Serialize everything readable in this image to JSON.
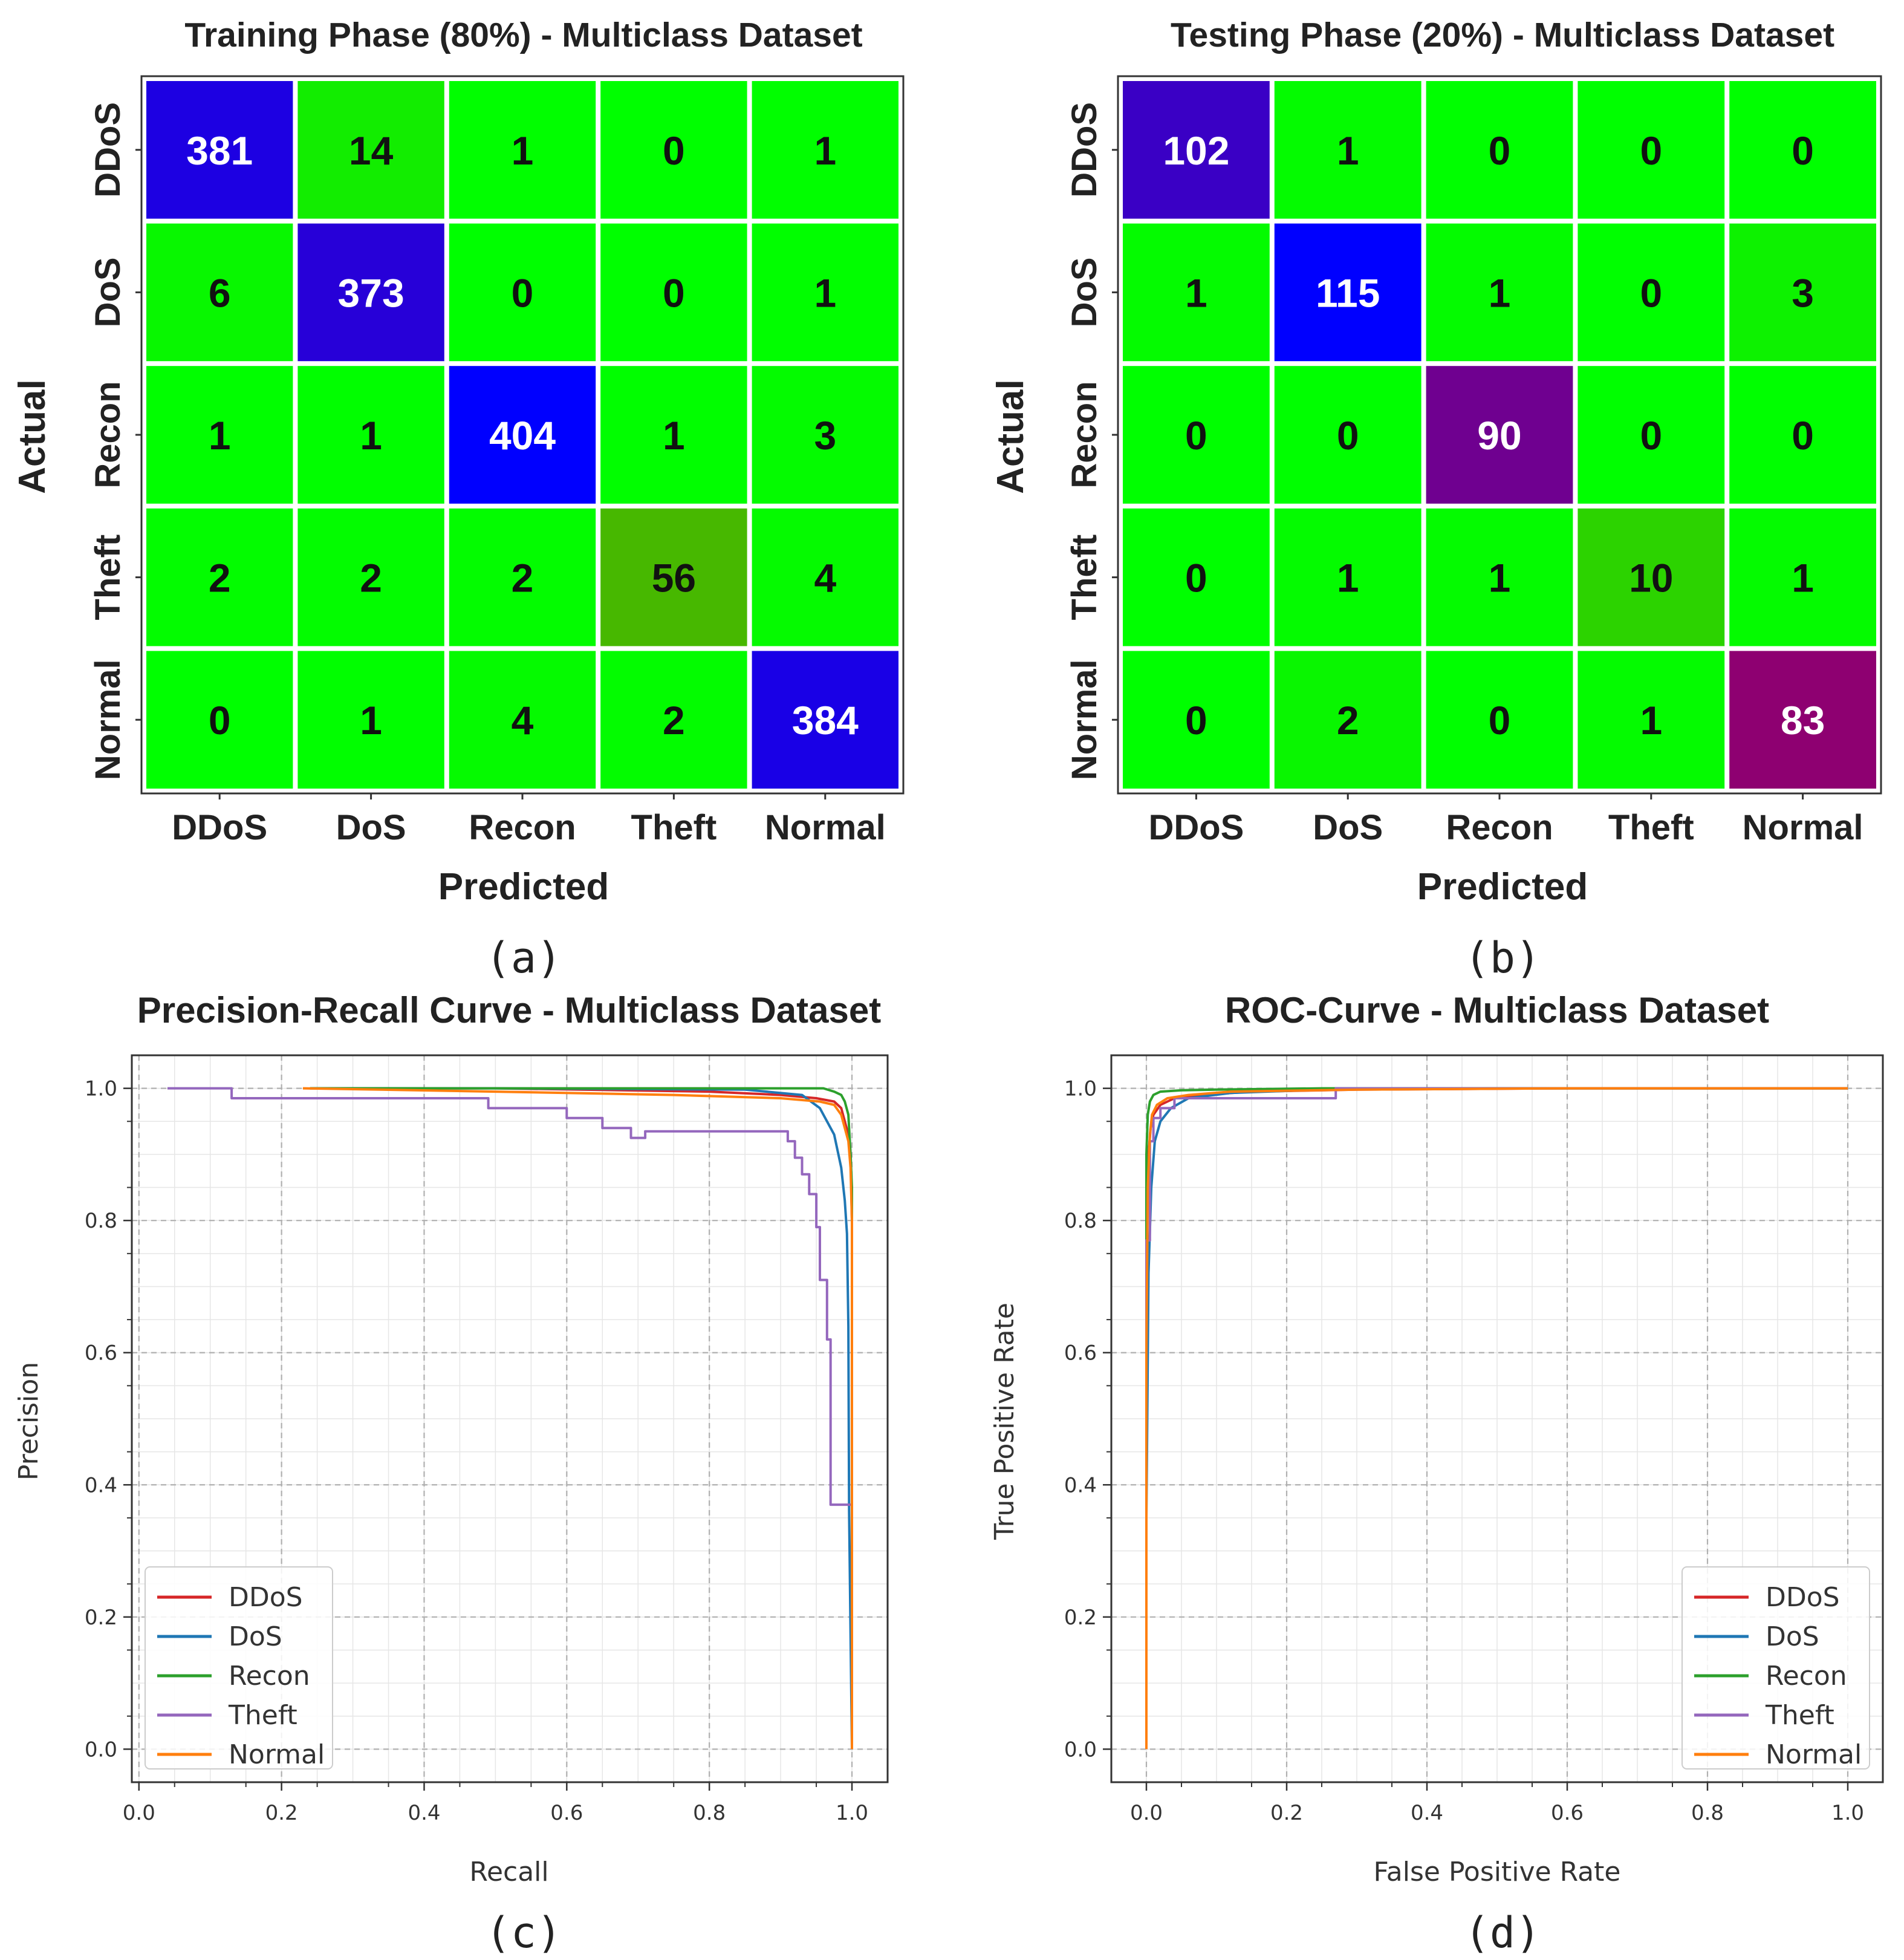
{
  "labels": {
    "a": "(a)",
    "b": "(b)",
    "c": "(c)",
    "d": "(d)"
  },
  "chart_data": [
    {
      "type": "heatmap",
      "id": "cm_train",
      "title": "Training Phase (80%) - Multiclass Dataset",
      "xlabel": "Predicted",
      "ylabel": "Actual",
      "classes": [
        "DDoS",
        "DoS",
        "Recon",
        "Theft",
        "Normal"
      ],
      "matrix": [
        [
          381,
          14,
          1,
          0,
          1
        ],
        [
          6,
          373,
          0,
          0,
          1
        ],
        [
          1,
          1,
          404,
          1,
          3
        ],
        [
          2,
          2,
          2,
          56,
          4
        ],
        [
          0,
          1,
          4,
          2,
          384
        ]
      ],
      "colormap": "brg",
      "vmax": 404
    },
    {
      "type": "heatmap",
      "id": "cm_test",
      "title": "Testing Phase (20%) - Multiclass Dataset",
      "xlabel": "Predicted",
      "ylabel": "Actual",
      "classes": [
        "DDoS",
        "DoS",
        "Recon",
        "Theft",
        "Normal"
      ],
      "matrix": [
        [
          102,
          1,
          0,
          0,
          0
        ],
        [
          1,
          115,
          1,
          0,
          3
        ],
        [
          0,
          0,
          90,
          0,
          0
        ],
        [
          0,
          1,
          1,
          10,
          1
        ],
        [
          0,
          2,
          0,
          1,
          83
        ]
      ],
      "colormap": "brg",
      "vmax": 115
    },
    {
      "type": "line",
      "id": "pr",
      "title": "Precision-Recall Curve - Multiclass Dataset",
      "xlabel": "Recall",
      "ylabel": "Precision",
      "xlim": [
        -0.01,
        1.05
      ],
      "ylim": [
        -0.05,
        1.05
      ],
      "xticks": [
        "0.0",
        "0.2",
        "0.4",
        "0.6",
        "0.8",
        "1.0"
      ],
      "yticks": [
        "0.0",
        "0.2",
        "0.4",
        "0.6",
        "0.8",
        "1.0"
      ],
      "legend": "lower-left",
      "series": [
        {
          "name": "DDoS",
          "color": "#d62728",
          "x": [
            0.24,
            0.5,
            0.8,
            0.9,
            0.95,
            0.975,
            0.985,
            0.99,
            0.995,
            0.998,
            1.0,
            1.0
          ],
          "y": [
            1.0,
            1.0,
            0.995,
            0.99,
            0.985,
            0.98,
            0.97,
            0.95,
            0.93,
            0.9,
            0.8,
            0.0
          ]
        },
        {
          "name": "DoS",
          "color": "#1f77b4",
          "x": [
            0.24,
            0.5,
            0.85,
            0.93,
            0.955,
            0.965,
            0.975,
            0.985,
            0.99,
            0.993,
            0.995,
            0.996,
            1.0
          ],
          "y": [
            1.0,
            1.0,
            0.998,
            0.99,
            0.97,
            0.95,
            0.93,
            0.88,
            0.83,
            0.78,
            0.64,
            0.36,
            0.0
          ]
        },
        {
          "name": "Recon",
          "color": "#2ca02c",
          "x": [
            0.24,
            0.5,
            0.85,
            0.96,
            0.975,
            0.985,
            0.99,
            0.995,
            0.998,
            1.0,
            1.0
          ],
          "y": [
            1.0,
            1.0,
            1.0,
            1.0,
            0.995,
            0.99,
            0.98,
            0.96,
            0.9,
            0.85,
            0.0
          ]
        },
        {
          "name": "Theft",
          "color": "#9467bd",
          "x": [
            0.04,
            0.13,
            0.13,
            0.49,
            0.49,
            0.6,
            0.6,
            0.65,
            0.65,
            0.69,
            0.69,
            0.71,
            0.71,
            0.91,
            0.91,
            0.92,
            0.92,
            0.93,
            0.93,
            0.94,
            0.94,
            0.95,
            0.95,
            0.955,
            0.955,
            0.965,
            0.965,
            0.97,
            0.97,
            1.0,
            1.0
          ],
          "y": [
            1.0,
            1.0,
            0.985,
            0.985,
            0.97,
            0.97,
            0.955,
            0.955,
            0.94,
            0.94,
            0.925,
            0.925,
            0.935,
            0.935,
            0.92,
            0.92,
            0.895,
            0.895,
            0.87,
            0.87,
            0.84,
            0.84,
            0.79,
            0.79,
            0.71,
            0.71,
            0.62,
            0.62,
            0.37,
            0.37,
            0.0
          ]
        },
        {
          "name": "Normal",
          "color": "#ff7f0e",
          "x": [
            0.23,
            0.5,
            0.75,
            0.9,
            0.955,
            0.975,
            0.985,
            0.99,
            0.995,
            0.998,
            1.0,
            1.0
          ],
          "y": [
            1.0,
            0.995,
            0.99,
            0.985,
            0.98,
            0.975,
            0.96,
            0.94,
            0.92,
            0.88,
            0.8,
            0.0
          ]
        }
      ]
    },
    {
      "type": "line",
      "id": "roc",
      "title": "ROC-Curve - Multiclass Dataset",
      "xlabel": "False Positive Rate",
      "ylabel": "True Positive Rate",
      "xlim": [
        -0.05,
        1.05
      ],
      "ylim": [
        -0.05,
        1.05
      ],
      "xticks": [
        "0.0",
        "0.2",
        "0.4",
        "0.6",
        "0.8",
        "1.0"
      ],
      "yticks": [
        "0.0",
        "0.2",
        "0.4",
        "0.6",
        "0.8",
        "1.0"
      ],
      "legend": "lower-right",
      "series": [
        {
          "name": "DDoS",
          "color": "#d62728",
          "x": [
            0.0,
            0.0,
            0.003,
            0.006,
            0.01,
            0.02,
            0.04,
            0.08,
            0.15,
            0.3,
            0.6,
            1.0
          ],
          "y": [
            0.0,
            0.8,
            0.9,
            0.94,
            0.96,
            0.975,
            0.985,
            0.99,
            0.995,
            0.998,
            1.0,
            1.0
          ]
        },
        {
          "name": "DoS",
          "color": "#1f77b4",
          "x": [
            0.0,
            0.0,
            0.003,
            0.007,
            0.012,
            0.02,
            0.035,
            0.06,
            0.12,
            0.25,
            0.5,
            1.0
          ],
          "y": [
            0.0,
            0.35,
            0.72,
            0.85,
            0.92,
            0.95,
            0.97,
            0.985,
            0.993,
            0.998,
            1.0,
            1.0
          ]
        },
        {
          "name": "Recon",
          "color": "#2ca02c",
          "x": [
            0.0,
            0.0,
            0.002,
            0.005,
            0.01,
            0.02,
            0.05,
            0.1,
            0.25,
            0.5,
            1.0
          ],
          "y": [
            0.0,
            0.9,
            0.96,
            0.98,
            0.99,
            0.995,
            0.997,
            0.998,
            1.0,
            1.0,
            1.0
          ]
        },
        {
          "name": "Theft",
          "color": "#9467bd",
          "x": [
            0.0,
            0.0,
            0.005,
            0.005,
            0.01,
            0.01,
            0.02,
            0.02,
            0.04,
            0.04,
            0.27,
            0.27,
            1.0
          ],
          "y": [
            0.0,
            0.77,
            0.77,
            0.92,
            0.92,
            0.955,
            0.955,
            0.97,
            0.97,
            0.985,
            0.985,
            1.0,
            1.0
          ]
        },
        {
          "name": "Normal",
          "color": "#ff7f0e",
          "x": [
            0.0,
            0.0,
            0.002,
            0.005,
            0.008,
            0.015,
            0.03,
            0.06,
            0.12,
            0.3,
            0.6,
            1.0
          ],
          "y": [
            0.0,
            0.6,
            0.85,
            0.93,
            0.96,
            0.975,
            0.985,
            0.99,
            0.995,
            0.998,
            1.0,
            1.0
          ]
        }
      ]
    }
  ]
}
